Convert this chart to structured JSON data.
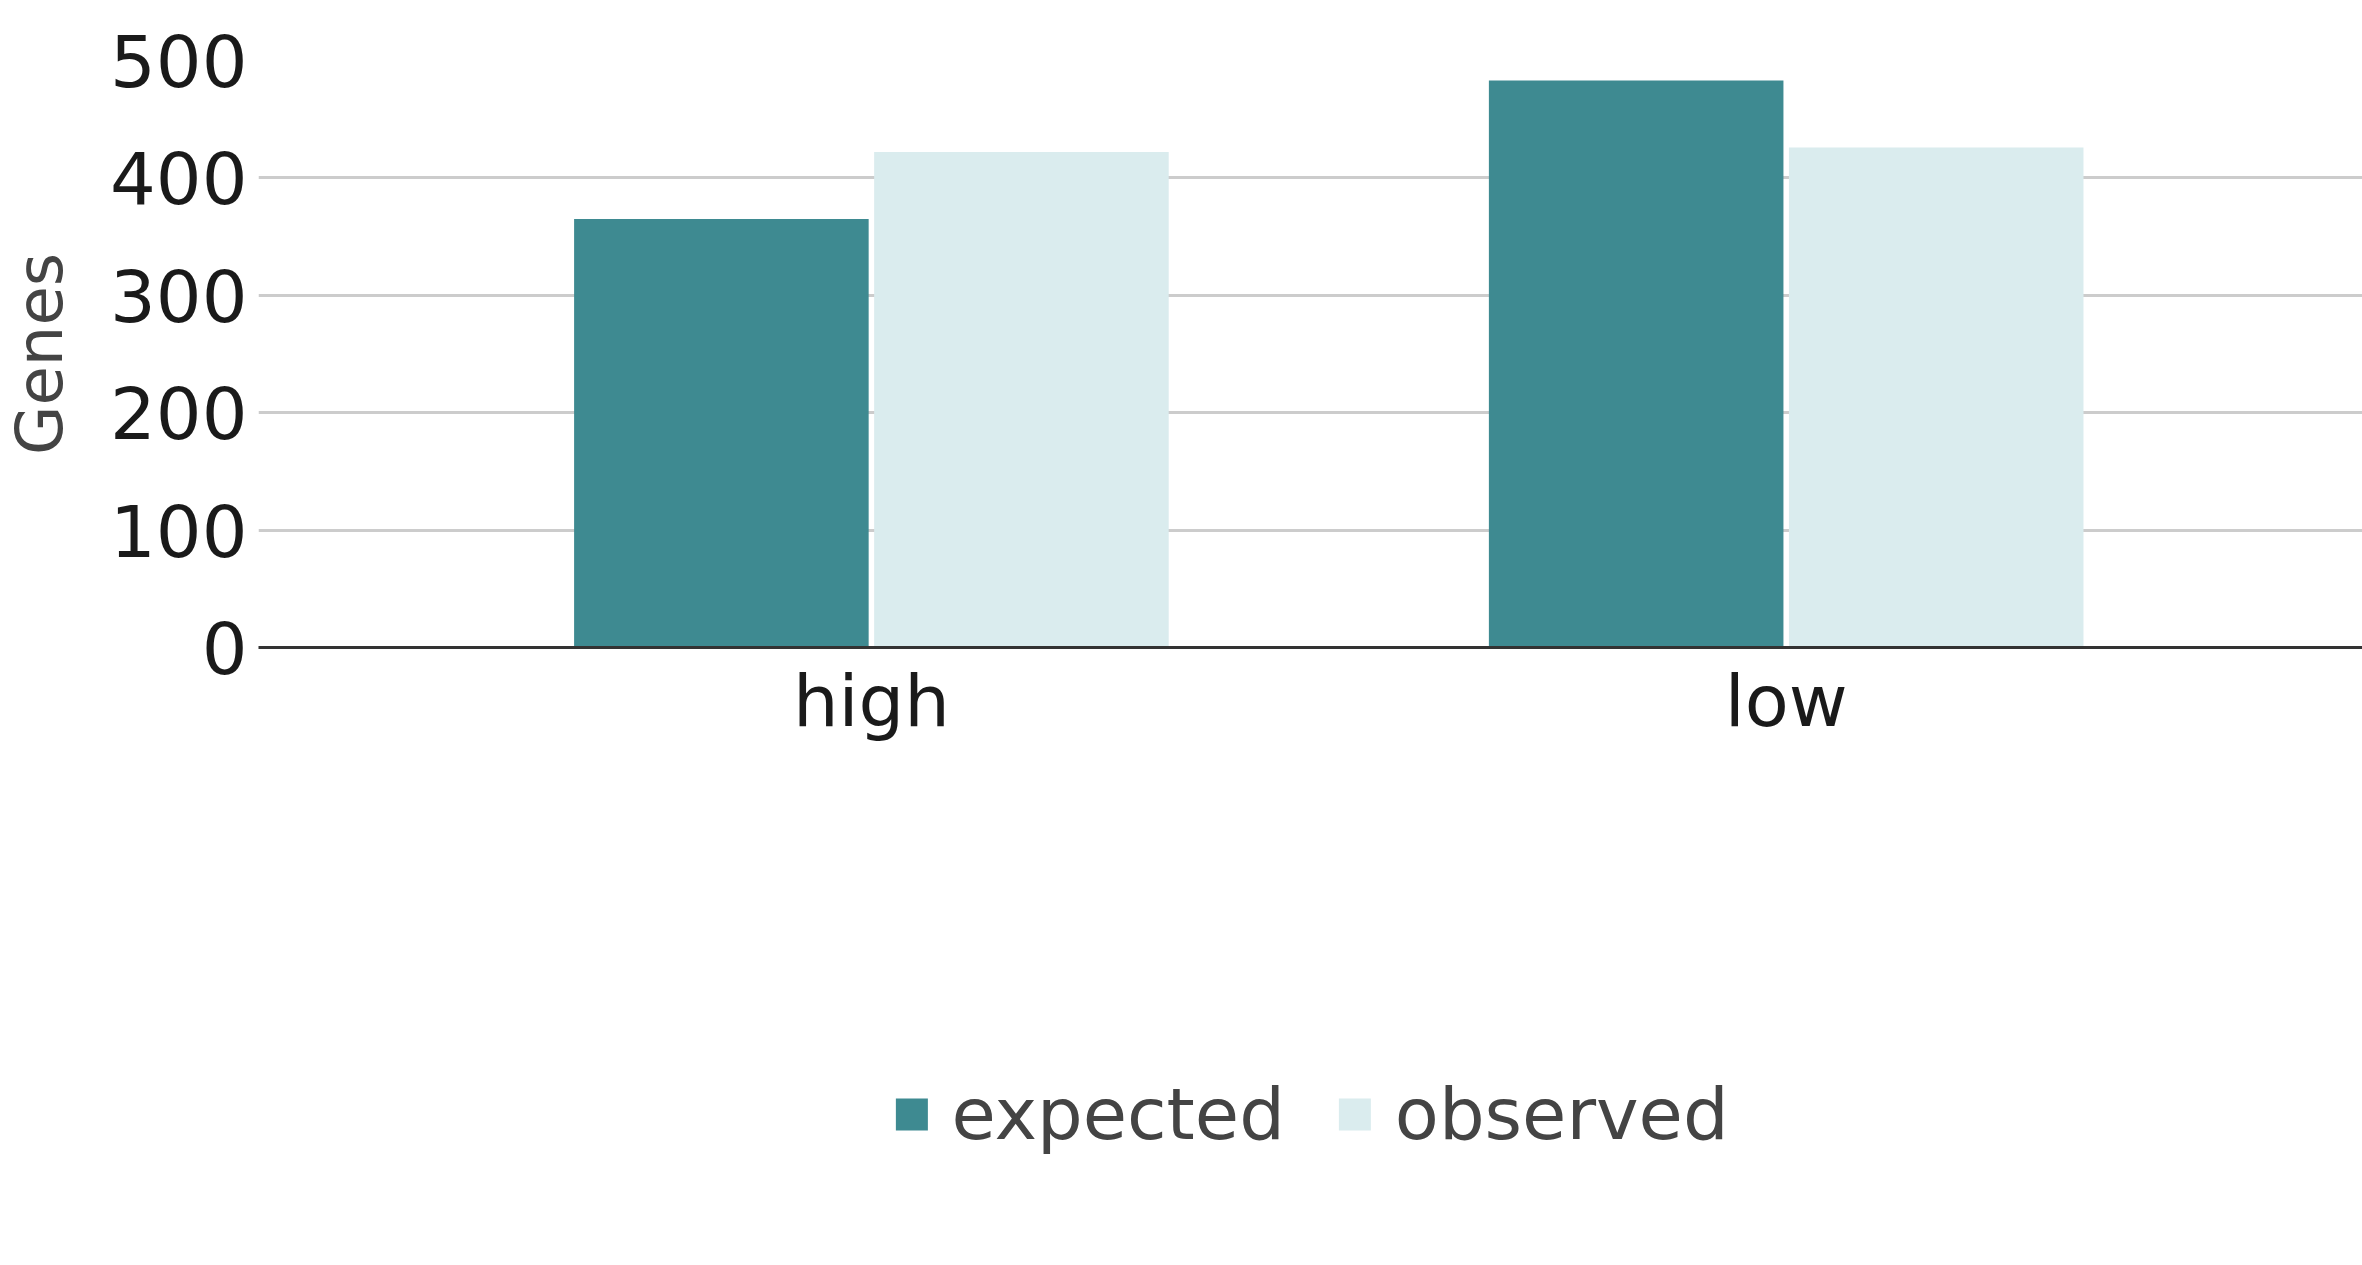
{
  "chart_data": {
    "type": "bar",
    "ylabel": "Genes",
    "categories": [
      "high",
      "low"
    ],
    "series": [
      {
        "name": "expected",
        "color": "#3e8a91",
        "values": [
          365,
          483
        ]
      },
      {
        "name": "observed",
        "color": "#daecee",
        "values": [
          422,
          426
        ]
      }
    ],
    "ylim": [
      0,
      500
    ],
    "yticks": [
      0,
      100,
      200,
      300,
      400,
      500
    ],
    "grid": "y",
    "legend": "bottom"
  }
}
